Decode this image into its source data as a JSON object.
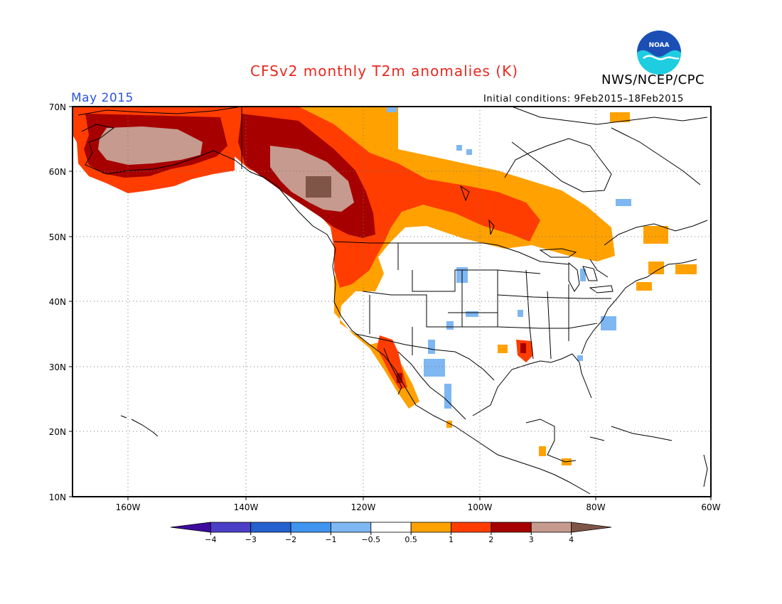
{
  "title": "CFSv2 monthly T2m anomalies (K)",
  "agency": "NWS/NCEP/CPC",
  "logo_text": "NOAA",
  "valid_month": "May 2015",
  "initial_conditions": "Initial conditions: 9Feb2015–18Feb2015",
  "lat_labels": [
    "70N",
    "60N",
    "50N",
    "40N",
    "30N",
    "20N",
    "10N"
  ],
  "lon_labels": [
    "160W",
    "140W",
    "120W",
    "100W",
    "80W",
    "60W"
  ],
  "colorbar": {
    "tick_labels": [
      "−4",
      "−3",
      "−2",
      "−1",
      "−0.5",
      "0.5",
      "1",
      "2",
      "3",
      "4"
    ],
    "colors": [
      "#3d0b9e",
      "#4b3fc7",
      "#2461cf",
      "#3f94ef",
      "#7fb7f2",
      "#ffffff",
      "#ffa100",
      "#ff3d00",
      "#a60000",
      "#c69a8e",
      "#7f5548"
    ]
  },
  "colors": {
    "title": "#e8281e",
    "month": "#2b54e0",
    "logo_blue": "#1b4fb6",
    "logo_cyan": "#1ecde0"
  }
}
